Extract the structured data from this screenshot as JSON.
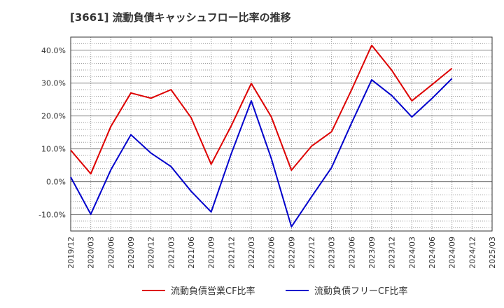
{
  "title": "[3661]  流動負債キャッシュフロー比率の推移",
  "chart_data": {
    "type": "line",
    "x": [
      "2019/12",
      "2020/03",
      "2020/06",
      "2020/09",
      "2020/12",
      "2021/03",
      "2021/06",
      "2021/09",
      "2021/12",
      "2022/03",
      "2022/06",
      "2022/09",
      "2022/12",
      "2023/03",
      "2023/06",
      "2023/09",
      "2023/12",
      "2024/03",
      "2024/06",
      "2024/09",
      "2024/12",
      "2025/03"
    ],
    "ylim": [
      -15,
      44
    ],
    "yticks": [
      -10,
      0,
      10,
      20,
      30,
      40
    ],
    "ytick_labels": [
      "-10.0%",
      "0.0%",
      "10.0%",
      "20.0%",
      "30.0%",
      "40.0%"
    ],
    "grid": true,
    "legend_position": "bottom",
    "series": [
      {
        "name": "流動負債営業CF比率",
        "color": "#dd0000",
        "values": [
          9.6,
          2.4,
          16.8,
          27.0,
          25.4,
          28.0,
          19.5,
          5.3,
          17.0,
          29.9,
          19.7,
          3.5,
          10.8,
          15.2,
          28.0,
          41.5,
          33.9,
          24.6,
          29.5,
          34.5,
          null,
          null
        ]
      },
      {
        "name": "流動負債フリーCF比率",
        "color": "#0000cc",
        "values": [
          1.4,
          -9.9,
          3.6,
          14.3,
          8.7,
          4.6,
          -2.9,
          -9.2,
          8.5,
          24.6,
          7.0,
          -13.7,
          -4.6,
          4.3,
          17.9,
          31.0,
          26.2,
          19.7,
          25.3,
          31.4,
          null,
          null
        ]
      }
    ]
  }
}
